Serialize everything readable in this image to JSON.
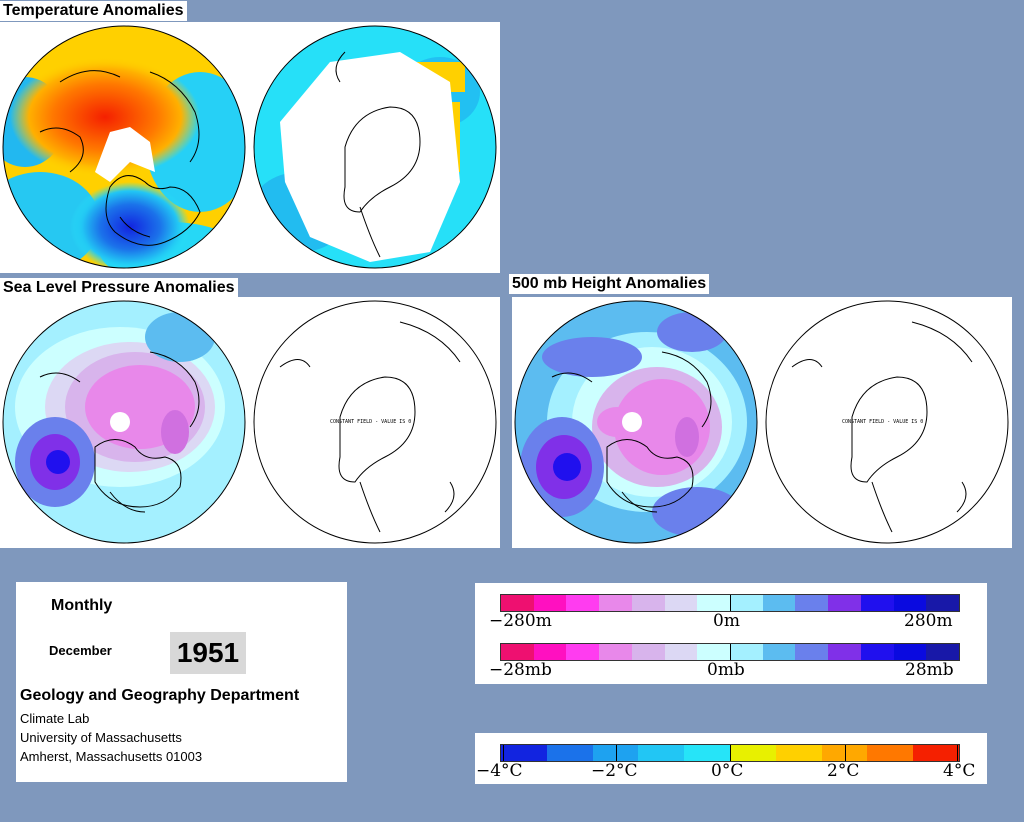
{
  "panels": {
    "temperature": {
      "title": "Temperature Anomalies"
    },
    "slp": {
      "title": "Sea Level Pressure Anomalies",
      "constant_note": "CONSTANT FIELD - VALUE IS 0"
    },
    "height500": {
      "title": "500 mb Height Anomalies",
      "constant_note": "CONSTANT FIELD - VALUE IS 0"
    }
  },
  "info": {
    "period": "Monthly",
    "month": "December",
    "year": "1951",
    "department": "Geology and Geography Department",
    "lab": "Climate Lab",
    "university": "University of Massachusetts",
    "address": "Amherst, Massachusetts 01003"
  },
  "legends": {
    "height": {
      "min_label": "−280m",
      "mid_label": "0m",
      "max_label": "280m"
    },
    "pressure": {
      "min_label": "−28mb",
      "mid_label": "0mb",
      "max_label": "28mb"
    },
    "height_pressure_colors": [
      "#ee1070",
      "#ff10c0",
      "#ff3cf0",
      "#e888ea",
      "#d8b4ec",
      "#dcd8f4",
      "#ccffff",
      "#a4f0ff",
      "#5cbcf0",
      "#6a80ec",
      "#8030e8",
      "#2010ee",
      "#0a0ae0",
      "#1818a8"
    ],
    "temperature": {
      "labels": [
        "−4°C",
        "−2°C",
        "0°C",
        "2°C",
        "4°C"
      ]
    },
    "temperature_colors": [
      "#1224e0",
      "#1b72ea",
      "#1ea2f0",
      "#22c6f4",
      "#26e4f8",
      "#e8f000",
      "#ffd000",
      "#ffa800",
      "#ff7800",
      "#f52000"
    ]
  }
}
